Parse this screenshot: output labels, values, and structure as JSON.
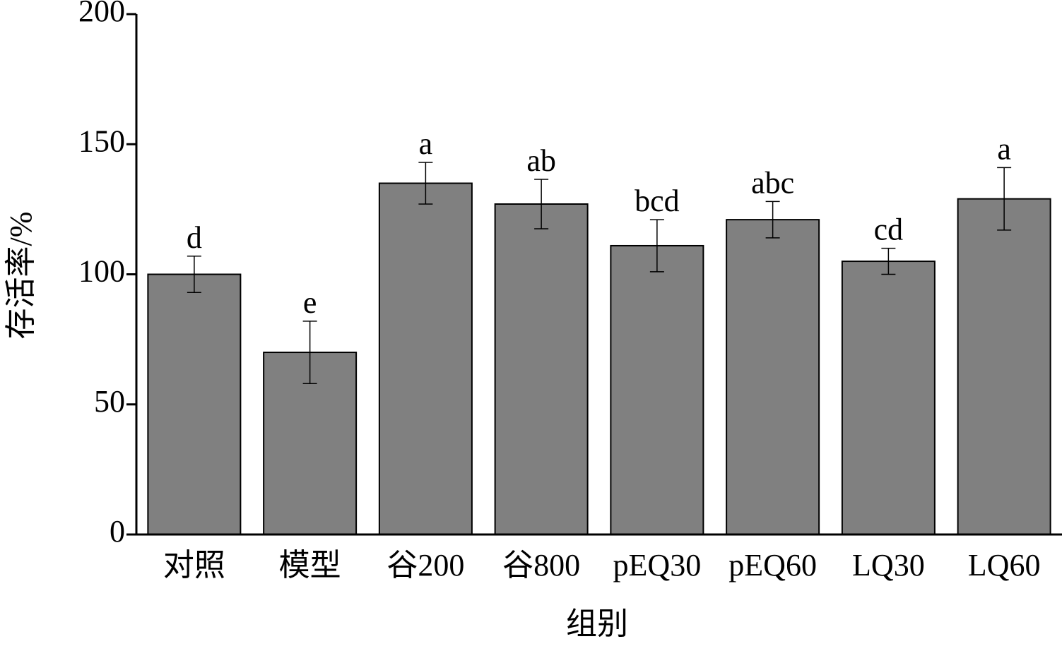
{
  "chart_data": {
    "type": "bar",
    "xlabel": "组别",
    "ylabel": "存活率/%",
    "categories": [
      "对照",
      "模型",
      "谷200",
      "谷800",
      "pEQ30",
      "pEQ60",
      "LQ30",
      "LQ60"
    ],
    "values": [
      100,
      70,
      135,
      127,
      111,
      121,
      105,
      129
    ],
    "errors": [
      7,
      12,
      8,
      9.5,
      10,
      7,
      5,
      12
    ],
    "significance": [
      "d",
      "e",
      "a",
      "ab",
      "bcd",
      "abc",
      "cd",
      "a"
    ],
    "color": "#808080",
    "ylim": [
      0,
      200
    ],
    "yticks": [
      0,
      50,
      100,
      150,
      200
    ],
    "grid": false
  }
}
